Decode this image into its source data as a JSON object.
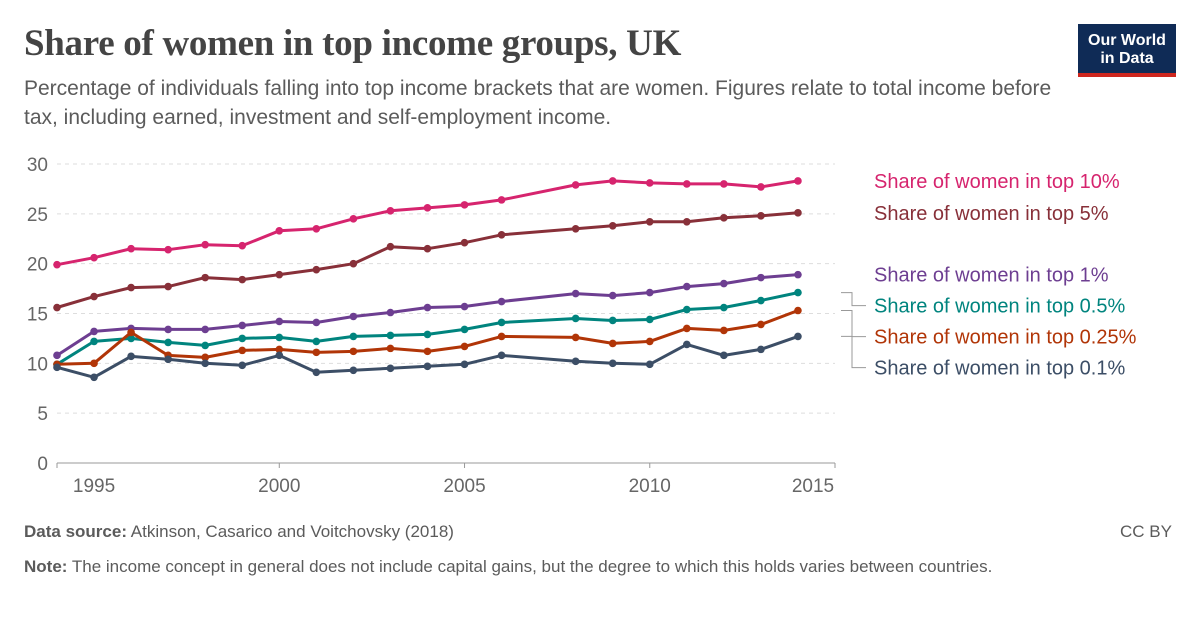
{
  "header": {
    "title": "Share of women in top income groups, UK",
    "subtitle": "Percentage of individuals falling into top income brackets that are women. Figures relate to total income before tax, including earned, investment and self-employment income.",
    "logo_line1": "Our World",
    "logo_line2": "in Data"
  },
  "footer": {
    "source_label": "Data source:",
    "source_text": "Atkinson, Casarico and Voitchovsky (2018)",
    "license": "CC BY",
    "note_label": "Note:",
    "note_text": "The income concept in general does not include capital gains, but the degree to which this holds varies between countries."
  },
  "colors": {
    "top10": "#d6246e",
    "top5": "#883039",
    "top1": "#6d3e91",
    "top05": "#00847e",
    "top025": "#b13507",
    "top01": "#3c4e66"
  },
  "chart_data": {
    "type": "line",
    "x_ticks": [
      1995,
      2000,
      2005,
      2010,
      2015
    ],
    "y_ticks": [
      0,
      5,
      10,
      15,
      20,
      25,
      30
    ],
    "xlim": [
      1994,
      2015
    ],
    "ylim": [
      0,
      30
    ],
    "grid": true,
    "legend": "right-end labels",
    "series": [
      {
        "name": "Share of women in top 10%",
        "color_key": "top10",
        "points": [
          [
            1994,
            19.9
          ],
          [
            1995,
            20.6
          ],
          [
            1996,
            21.5
          ],
          [
            1997,
            21.4
          ],
          [
            1998,
            21.9
          ],
          [
            1999,
            21.8
          ],
          [
            2000,
            23.3
          ],
          [
            2001,
            23.5
          ],
          [
            2002,
            24.5
          ],
          [
            2003,
            25.3
          ],
          [
            2004,
            25.6
          ],
          [
            2005,
            25.9
          ],
          [
            2006,
            26.4
          ],
          [
            2008,
            27.9
          ],
          [
            2009,
            28.3
          ],
          [
            2010,
            28.1
          ],
          [
            2011,
            28.0
          ],
          [
            2012,
            28.0
          ],
          [
            2013,
            27.7
          ],
          [
            2014,
            28.3
          ]
        ]
      },
      {
        "name": "Share of women in top 5%",
        "color_key": "top5",
        "points": [
          [
            1994,
            15.6
          ],
          [
            1995,
            16.7
          ],
          [
            1996,
            17.6
          ],
          [
            1997,
            17.7
          ],
          [
            1998,
            18.6
          ],
          [
            1999,
            18.4
          ],
          [
            2000,
            18.9
          ],
          [
            2001,
            19.4
          ],
          [
            2002,
            20.0
          ],
          [
            2003,
            21.7
          ],
          [
            2004,
            21.5
          ],
          [
            2005,
            22.1
          ],
          [
            2006,
            22.9
          ],
          [
            2008,
            23.5
          ],
          [
            2009,
            23.8
          ],
          [
            2010,
            24.2
          ],
          [
            2011,
            24.2
          ],
          [
            2012,
            24.6
          ],
          [
            2013,
            24.8
          ],
          [
            2014,
            25.1
          ]
        ]
      },
      {
        "name": "Share of women in top 1%",
        "color_key": "top1",
        "points": [
          [
            1994,
            10.8
          ],
          [
            1995,
            13.2
          ],
          [
            1996,
            13.5
          ],
          [
            1997,
            13.4
          ],
          [
            1998,
            13.4
          ],
          [
            1999,
            13.8
          ],
          [
            2000,
            14.2
          ],
          [
            2001,
            14.1
          ],
          [
            2002,
            14.7
          ],
          [
            2003,
            15.1
          ],
          [
            2004,
            15.6
          ],
          [
            2005,
            15.7
          ],
          [
            2006,
            16.2
          ],
          [
            2008,
            17.0
          ],
          [
            2009,
            16.8
          ],
          [
            2010,
            17.1
          ],
          [
            2011,
            17.7
          ],
          [
            2012,
            18.0
          ],
          [
            2013,
            18.6
          ],
          [
            2014,
            18.9
          ]
        ]
      },
      {
        "name": "Share of women in top 0.5%",
        "color_key": "top05",
        "points": [
          [
            1994,
            9.9
          ],
          [
            1995,
            12.2
          ],
          [
            1996,
            12.5
          ],
          [
            1997,
            12.1
          ],
          [
            1998,
            11.8
          ],
          [
            1999,
            12.5
          ],
          [
            2000,
            12.6
          ],
          [
            2001,
            12.2
          ],
          [
            2002,
            12.7
          ],
          [
            2003,
            12.8
          ],
          [
            2004,
            12.9
          ],
          [
            2005,
            13.4
          ],
          [
            2006,
            14.1
          ],
          [
            2008,
            14.5
          ],
          [
            2009,
            14.3
          ],
          [
            2010,
            14.4
          ],
          [
            2011,
            15.4
          ],
          [
            2012,
            15.6
          ],
          [
            2013,
            16.3
          ],
          [
            2014,
            17.1
          ]
        ]
      },
      {
        "name": "Share of women in top 0.25%",
        "color_key": "top025",
        "points": [
          [
            1994,
            9.9
          ],
          [
            1995,
            10.0
          ],
          [
            1996,
            13.1
          ],
          [
            1997,
            10.8
          ],
          [
            1998,
            10.6
          ],
          [
            1999,
            11.3
          ],
          [
            2000,
            11.4
          ],
          [
            2001,
            11.1
          ],
          [
            2002,
            11.2
          ],
          [
            2003,
            11.5
          ],
          [
            2004,
            11.2
          ],
          [
            2005,
            11.7
          ],
          [
            2006,
            12.7
          ],
          [
            2008,
            12.6
          ],
          [
            2009,
            12.0
          ],
          [
            2010,
            12.2
          ],
          [
            2011,
            13.5
          ],
          [
            2012,
            13.3
          ],
          [
            2013,
            13.9
          ],
          [
            2014,
            15.3
          ]
        ]
      },
      {
        "name": "Share of women in top 0.1%",
        "color_key": "top01",
        "points": [
          [
            1994,
            9.6
          ],
          [
            1995,
            8.6
          ],
          [
            1996,
            10.7
          ],
          [
            1997,
            10.4
          ],
          [
            1998,
            10.0
          ],
          [
            1999,
            9.8
          ],
          [
            2000,
            10.8
          ],
          [
            2001,
            9.1
          ],
          [
            2002,
            9.3
          ],
          [
            2003,
            9.5
          ],
          [
            2004,
            9.7
          ],
          [
            2005,
            9.9
          ],
          [
            2006,
            10.8
          ],
          [
            2008,
            10.2
          ],
          [
            2009,
            10.0
          ],
          [
            2010,
            9.9
          ],
          [
            2011,
            11.9
          ],
          [
            2012,
            10.8
          ],
          [
            2013,
            11.4
          ],
          [
            2014,
            12.7
          ]
        ]
      }
    ]
  }
}
